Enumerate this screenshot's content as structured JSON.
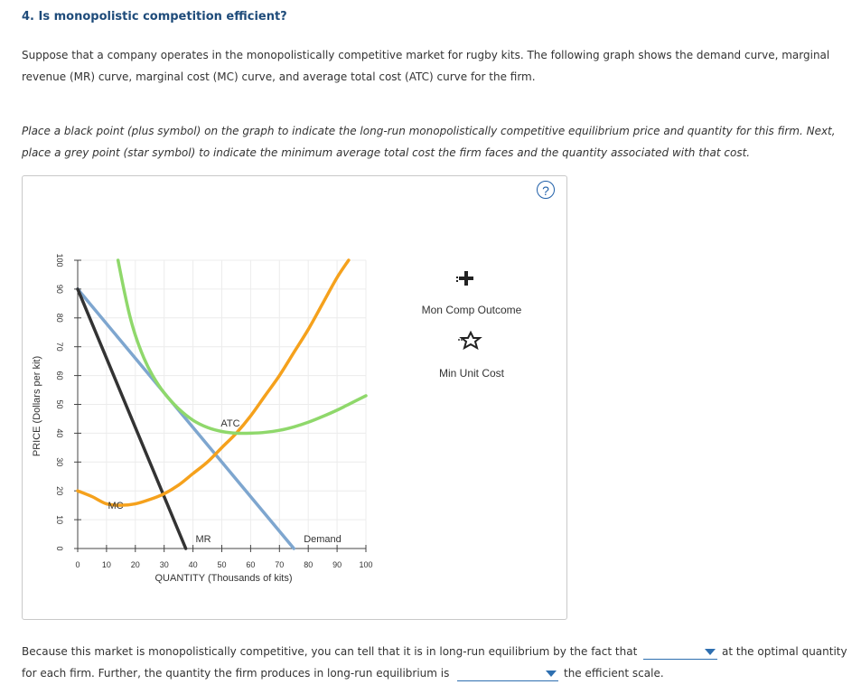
{
  "question_title": "4. Is monopolistic competition efficient?",
  "intro": "Suppose that a company operates in the monopolistically competitive market for rugby kits. The following graph shows the demand curve, marginal revenue (MR) curve, marginal cost (MC) curve, and average total cost (ATC) curve for the firm.",
  "instructions": "Place a black point (plus symbol) on the graph to indicate the long-run monopolistically competitive equilibrium price and quantity for this firm. Next, place a grey point (star symbol) to indicate the minimum average total cost the firm faces and the quantity associated with that cost.",
  "help_icon": "?",
  "tools": [
    {
      "label": "Mon Comp Outcome",
      "icon": "plus-icon"
    },
    {
      "label": "Min Unit Cost",
      "icon": "star-icon"
    }
  ],
  "bottom": {
    "line1_before": "Because this market is monopolistically competitive, you can tell that it is in long-run equilibrium by the fact that",
    "line1_after": "at the optimal quantity",
    "line2_before": "for each firm. Further, the quantity the firm produces in long-run equilibrium is",
    "line2_after": "the efficient scale.",
    "dropdown1_value": "",
    "dropdown2_value": ""
  },
  "colors": {
    "demand": "#7ea6cf",
    "mr": "#333333",
    "mc": "#f5a11c",
    "atc": "#8fd86b",
    "title": "#1e4b7a",
    "link": "#2e6fb0"
  },
  "chart_data": {
    "type": "line",
    "xlabel": "QUANTITY (Thousands of kits)",
    "ylabel": "PRICE (Dollars per kit)",
    "xlim": [
      0,
      100
    ],
    "ylim": [
      0,
      100
    ],
    "xticks": [
      0,
      10,
      20,
      30,
      40,
      50,
      60,
      70,
      80,
      90,
      100
    ],
    "yticks": [
      0,
      10,
      20,
      30,
      40,
      50,
      60,
      70,
      80,
      90,
      100
    ],
    "grid": true,
    "series": [
      {
        "name": "Demand",
        "x": [
          0,
          75
        ],
        "y": [
          90,
          0
        ]
      },
      {
        "name": "MR",
        "x": [
          0,
          37.5
        ],
        "y": [
          90,
          0
        ]
      },
      {
        "name": "MC",
        "x": [
          0,
          5,
          10,
          15,
          20,
          25,
          30,
          35,
          40,
          45,
          50,
          55,
          60,
          65,
          70,
          75,
          80,
          85,
          90,
          94
        ],
        "y": [
          20,
          18,
          15.5,
          15,
          15.5,
          17,
          19,
          22,
          26,
          30,
          35,
          40,
          46,
          53,
          60,
          68,
          76,
          85,
          94,
          100
        ]
      },
      {
        "name": "ATC",
        "x": [
          14,
          16,
          18,
          20,
          23,
          26,
          30,
          35,
          40,
          45,
          50,
          55,
          60,
          65,
          70,
          75,
          80,
          85,
          90,
          95,
          100
        ],
        "y": [
          100,
          90,
          81,
          74,
          66,
          60,
          54,
          48.5,
          44.5,
          42,
          40.6,
          40,
          40,
          40.3,
          41,
          42.2,
          43.8,
          45.8,
          48,
          50.5,
          53
        ]
      }
    ],
    "annotations": [
      "ATC",
      "MC",
      "MR",
      "Demand"
    ]
  }
}
